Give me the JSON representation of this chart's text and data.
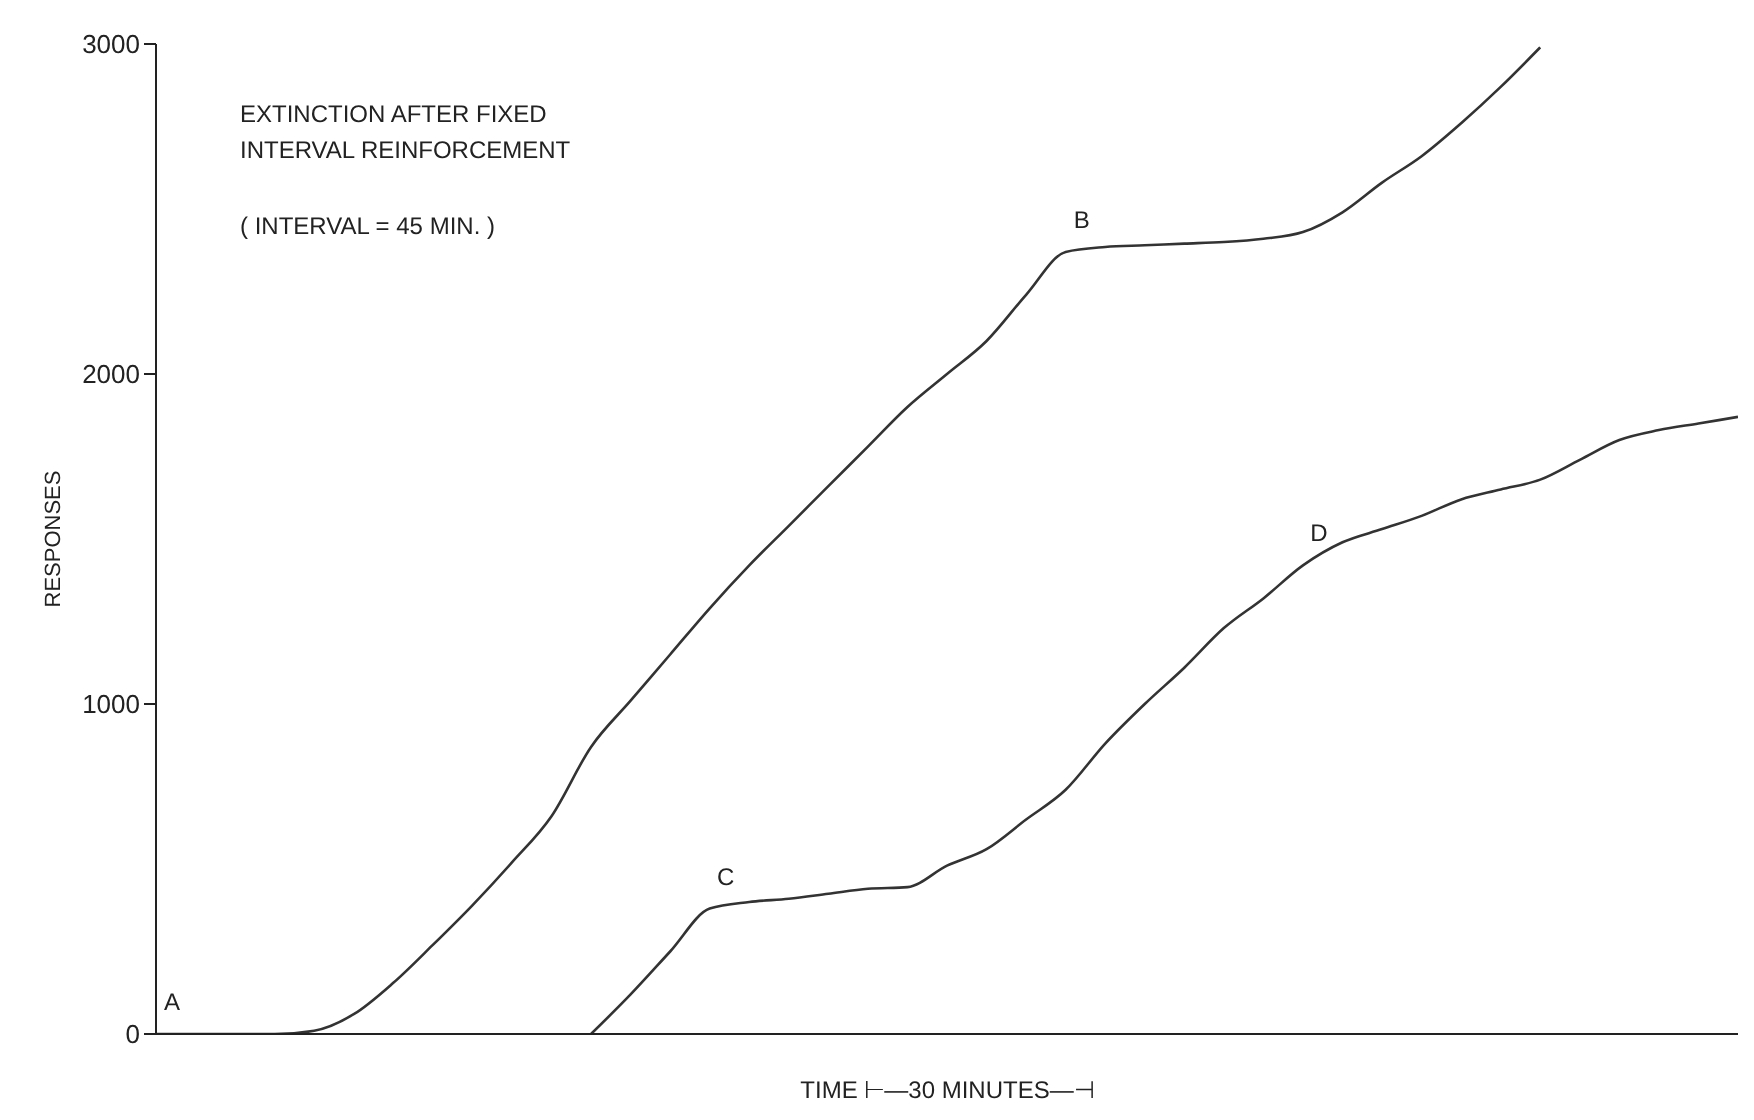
{
  "chart_data": {
    "type": "line",
    "title": "EXTINCTION AFTER FIXED\nINTERVAL REINFORCEMENT",
    "annotations": [
      "( INTERVAL = 45 MIN. )"
    ],
    "xlabel": "TIME ⊢—30 MINUTES—⊣",
    "ylabel": "RESPONSES",
    "categories": [
      null,
      null,
      null,
      null,
      null,
      null,
      null,
      null,
      null,
      null,
      null,
      null,
      null,
      null,
      null,
      null,
      null,
      null,
      null,
      null,
      null,
      null,
      null,
      null,
      null,
      null,
      null,
      null,
      null,
      null,
      null,
      null,
      null,
      null,
      null,
      null,
      null,
      null,
      null,
      null,
      null
    ],
    "series": [
      {
        "color": "#333333",
        "values": [
          0,
          0,
          0,
          0,
          10,
          60,
          155,
          270,
          390,
          520,
          660,
          870,
          1010,
          1150,
          1290,
          1420,
          1540,
          1660,
          1780,
          1900,
          2000,
          2100,
          2240,
          2370,
          2385,
          2390,
          2395,
          2400,
          2410,
          2430,
          2490,
          2580,
          2660,
          2760,
          2870,
          2990,
          null,
          null,
          null,
          null,
          null
        ],
        "value_labels": [
          "A",
          null,
          null,
          null,
          null,
          null,
          null,
          null,
          null,
          null,
          null,
          null,
          null,
          null,
          null,
          null,
          null,
          null,
          null,
          null,
          null,
          null,
          null,
          "B",
          null,
          null,
          null,
          null,
          null,
          null,
          null,
          null,
          null,
          null,
          null,
          null,
          null,
          null,
          null,
          null,
          null
        ]
      },
      {
        "color": "#333333",
        "values": [
          null,
          null,
          null,
          null,
          null,
          null,
          null,
          null,
          null,
          null,
          null,
          0,
          120,
          250,
          380,
          400,
          410,
          425,
          440,
          445,
          510,
          560,
          650,
          740,
          880,
          1000,
          1110,
          1230,
          1320,
          1420,
          1490,
          1530,
          1570,
          1620,
          1650,
          1680,
          1740,
          1800,
          1830,
          1850,
          1870
        ],
        "value_labels": [
          null,
          null,
          null,
          null,
          null,
          null,
          null,
          null,
          null,
          null,
          null,
          null,
          null,
          null,
          "C",
          null,
          null,
          null,
          null,
          null,
          null,
          null,
          null,
          null,
          null,
          null,
          null,
          null,
          null,
          "D",
          null,
          null,
          null,
          null,
          null,
          null,
          null,
          null,
          null,
          null,
          null
        ]
      }
    ],
    "ylim": [
      0,
      3000
    ],
    "yticks": [
      0,
      1000,
      2000,
      3000
    ],
    "grid": false,
    "legend": false,
    "marker": "none",
    "line_style": "solid"
  }
}
